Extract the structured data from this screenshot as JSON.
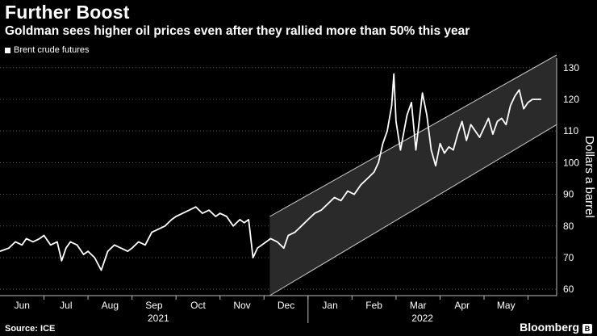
{
  "header": {
    "title": "Further Boost",
    "subtitle": "Goldman sees higher oil prices even after they rallied more than 50% this year"
  },
  "legend": {
    "label": "Brent crude futures"
  },
  "footer": {
    "source": "Source: ICE",
    "brand": "Bloomberg"
  },
  "colors": {
    "background": "#000000",
    "line": "#ffffff",
    "channel": "#2a2a2a",
    "grid": "#5a5a5a"
  },
  "chart_data": {
    "type": "line",
    "title": "Further Boost",
    "ylabel": "Dollars a barrel",
    "ylim": [
      58,
      133
    ],
    "yticks": [
      60,
      70,
      80,
      90,
      100,
      110,
      120,
      130
    ],
    "x_range_months": [
      0,
      12.65
    ],
    "month_ticks": [
      {
        "label": "Jun",
        "x": 0.5
      },
      {
        "label": "Jul",
        "x": 1.5
      },
      {
        "label": "Aug",
        "x": 2.5
      },
      {
        "label": "Sep",
        "x": 3.5
      },
      {
        "label": "Oct",
        "x": 4.5
      },
      {
        "label": "Nov",
        "x": 5.5
      },
      {
        "label": "Dec",
        "x": 6.5
      },
      {
        "label": "Jan",
        "x": 7.5
      },
      {
        "label": "Feb",
        "x": 8.5
      },
      {
        "label": "Mar",
        "x": 9.5
      },
      {
        "label": "Apr",
        "x": 10.5
      },
      {
        "label": "May",
        "x": 11.5
      }
    ],
    "year_labels": [
      {
        "label": "2021",
        "x": 3.6
      },
      {
        "label": "2022",
        "x": 9.6
      }
    ],
    "channel": {
      "start_x": 6.13,
      "end_x": 12.65,
      "upper_start": 83,
      "upper_end": 134,
      "lower_start": 58,
      "lower_end": 112
    },
    "series": [
      {
        "name": "Brent crude futures",
        "x": [
          0,
          0.2,
          0.35,
          0.5,
          0.6,
          0.75,
          0.9,
          1.0,
          1.15,
          1.3,
          1.4,
          1.5,
          1.6,
          1.75,
          1.9,
          2.0,
          2.15,
          2.3,
          2.45,
          2.6,
          2.75,
          2.9,
          3.0,
          3.15,
          3.3,
          3.45,
          3.6,
          3.75,
          3.9,
          4.0,
          4.15,
          4.3,
          4.45,
          4.6,
          4.75,
          4.9,
          5.0,
          5.15,
          5.3,
          5.45,
          5.55,
          5.65,
          5.75,
          5.85,
          5.95,
          6.05,
          6.15,
          6.3,
          6.45,
          6.55,
          6.7,
          6.85,
          7.0,
          7.15,
          7.3,
          7.45,
          7.6,
          7.75,
          7.9,
          8.05,
          8.2,
          8.35,
          8.5,
          8.6,
          8.7,
          8.8,
          8.9,
          8.95,
          9.0,
          9.1,
          9.25,
          9.35,
          9.45,
          9.5,
          9.6,
          9.7,
          9.8,
          9.9,
          10.0,
          10.1,
          10.2,
          10.3,
          10.4,
          10.5,
          10.6,
          10.7,
          10.8,
          10.9,
          11.0,
          11.1,
          11.2,
          11.3,
          11.4,
          11.5,
          11.6,
          11.7,
          11.8,
          11.9,
          12.0,
          12.1,
          12.2,
          12.3
        ],
        "values": [
          72,
          73,
          75,
          74,
          76,
          75,
          76,
          77,
          74,
          75,
          69,
          73,
          75,
          74,
          71,
          72,
          70,
          66,
          72,
          74,
          73,
          72,
          73,
          75,
          74,
          78,
          79,
          80,
          82,
          83,
          84,
          85,
          86,
          84,
          85,
          83,
          84,
          83,
          80,
          82,
          81,
          82,
          70,
          73,
          74,
          75,
          76,
          75,
          73,
          77,
          78,
          80,
          82,
          84,
          85,
          87,
          89,
          88,
          91,
          90,
          93,
          95,
          97,
          100,
          106,
          110,
          118,
          128,
          113,
          104,
          115,
          119,
          104,
          110,
          122,
          115,
          104,
          99,
          106,
          103,
          105,
          104,
          109,
          113,
          107,
          112,
          110,
          108,
          111,
          114,
          109,
          113,
          114,
          112,
          118,
          121,
          123,
          117,
          119,
          120,
          120,
          120
        ]
      }
    ]
  }
}
